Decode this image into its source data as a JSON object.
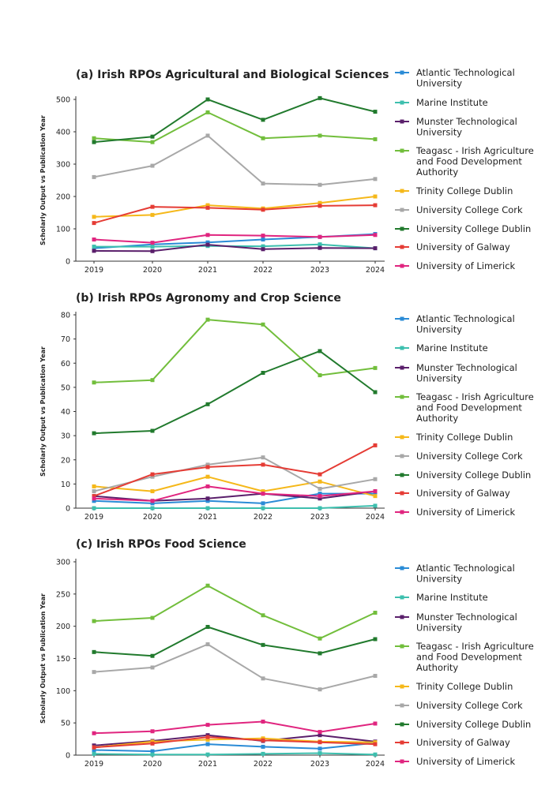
{
  "colors": {
    "Atlantic Technological University": "#2a8bd6",
    "Marine Institute": "#3dbfae",
    "Munster Technological University": "#5a1f6b",
    "Teagasc - Irish Agriculture and Food Development Authority": "#72be3c",
    "Trinity College Dublin": "#f5b81a",
    "University College Cork": "#a8a8a8",
    "University College Dublin": "#217a2d",
    "University of Galway": "#e53c35",
    "University of Limerick": "#e0257f"
  },
  "legend_lines": [
    [
      "Atlantic Technological",
      "University"
    ],
    [
      "Marine Institute"
    ],
    [
      "Munster Technological",
      "University"
    ],
    [
      "Teagasc - Irish Agriculture",
      "and Food Development",
      "Authority"
    ],
    [
      "Trinity College Dublin"
    ],
    [
      "University College Cork"
    ],
    [
      "University College Dublin"
    ],
    [
      "University of Galway"
    ],
    [
      "University of Limerick"
    ]
  ],
  "chart_data": [
    {
      "type": "line",
      "title": "(a) Irish RPOs Agricultural and Biological Sciences",
      "ylabel": "Scholarly Output vs Publication Year",
      "xlabel": "",
      "ylim": [
        0,
        500
      ],
      "yticks": [
        0,
        100,
        200,
        300,
        400,
        500
      ],
      "x": [
        "2019",
        "2020",
        "2021",
        "2022",
        "2023",
        "2024"
      ],
      "legend": "right",
      "grid": false,
      "series": [
        {
          "name": "Atlantic Technological University",
          "values": [
            40,
            52,
            58,
            67,
            75,
            84
          ]
        },
        {
          "name": "Marine Institute",
          "values": [
            45,
            45,
            47,
            46,
            52,
            40
          ]
        },
        {
          "name": "Munster Technological University",
          "values": [
            32,
            31,
            51,
            37,
            41,
            40
          ]
        },
        {
          "name": "Teagasc - Irish Agriculture and Food Development Authority",
          "values": [
            380,
            368,
            460,
            380,
            388,
            377
          ]
        },
        {
          "name": "Trinity College Dublin",
          "values": [
            137,
            143,
            173,
            163,
            180,
            200
          ]
        },
        {
          "name": "University College Cork",
          "values": [
            260,
            295,
            388,
            240,
            236,
            254
          ]
        },
        {
          "name": "University College Dublin",
          "values": [
            368,
            385,
            500,
            437,
            504,
            462
          ]
        },
        {
          "name": "University of Galway",
          "values": [
            118,
            168,
            165,
            159,
            171,
            173
          ]
        },
        {
          "name": "University of Limerick",
          "values": [
            67,
            57,
            81,
            79,
            75,
            81
          ]
        }
      ]
    },
    {
      "type": "line",
      "title": "(b) Irish RPOs Agronomy and Crop Science",
      "ylabel": "Scholarly Output vs Publication Year",
      "xlabel": "",
      "ylim": [
        0,
        80
      ],
      "yticks": [
        0,
        10,
        20,
        30,
        40,
        50,
        60,
        70,
        80
      ],
      "x": [
        "2019",
        "2020",
        "2021",
        "2022",
        "2023",
        "2024"
      ],
      "legend": "right",
      "grid": false,
      "series": [
        {
          "name": "Atlantic Technological University",
          "values": [
            3,
            2,
            3,
            2,
            6,
            6
          ]
        },
        {
          "name": "Marine Institute",
          "values": [
            0,
            0,
            0,
            0,
            0,
            1
          ]
        },
        {
          "name": "Munster Technological University",
          "values": [
            5,
            3,
            4,
            6,
            4,
            7
          ]
        },
        {
          "name": "Teagasc - Irish Agriculture and Food Development Authority",
          "values": [
            52,
            53,
            78,
            76,
            55,
            58
          ]
        },
        {
          "name": "Trinity College Dublin",
          "values": [
            9,
            7,
            13,
            7,
            11,
            5
          ]
        },
        {
          "name": "University College Cork",
          "values": [
            7,
            13,
            18,
            21,
            8,
            12
          ]
        },
        {
          "name": "University College Dublin",
          "values": [
            31,
            32,
            43,
            56,
            65,
            48
          ]
        },
        {
          "name": "University of Galway",
          "values": [
            5,
            14,
            17,
            18,
            14,
            26
          ]
        },
        {
          "name": "University of Limerick",
          "values": [
            4,
            3,
            9,
            6,
            5,
            7
          ]
        }
      ]
    },
    {
      "type": "line",
      "title": "(c) Irish RPOs Food Science",
      "ylabel": "Scholarly Output vs Publication Year",
      "xlabel": "",
      "ylim": [
        0,
        300
      ],
      "yticks": [
        0,
        50,
        100,
        150,
        200,
        250,
        300
      ],
      "x": [
        "2019",
        "2020",
        "2021",
        "2022",
        "2023",
        "2024"
      ],
      "legend": "right",
      "grid": false,
      "series": [
        {
          "name": "Atlantic Technological University",
          "values": [
            8,
            6,
            17,
            13,
            10,
            19
          ]
        },
        {
          "name": "Marine Institute",
          "values": [
            2,
            1,
            1,
            2,
            3,
            1
          ]
        },
        {
          "name": "Munster Technological University",
          "values": [
            15,
            22,
            31,
            22,
            31,
            21
          ]
        },
        {
          "name": "Teagasc - Irish Agriculture and Food Development Authority",
          "values": [
            208,
            213,
            263,
            217,
            181,
            221
          ]
        },
        {
          "name": "Trinity College Dublin",
          "values": [
            12,
            21,
            24,
            26,
            21,
            20
          ]
        },
        {
          "name": "University College Cork",
          "values": [
            129,
            136,
            172,
            119,
            102,
            123
          ]
        },
        {
          "name": "University College Dublin",
          "values": [
            160,
            154,
            199,
            171,
            158,
            180
          ]
        },
        {
          "name": "University of Galway",
          "values": [
            12,
            18,
            28,
            23,
            20,
            17
          ]
        },
        {
          "name": "University of Limerick",
          "values": [
            34,
            37,
            47,
            52,
            36,
            49
          ]
        }
      ]
    }
  ]
}
